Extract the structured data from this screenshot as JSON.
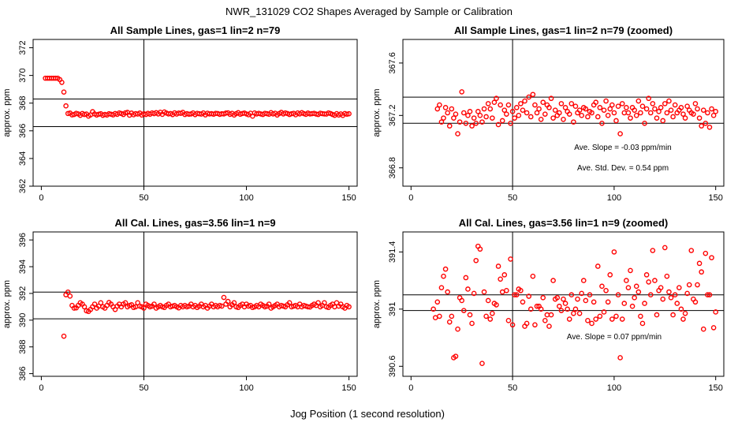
{
  "figure": {
    "title": "NWR_131029  CO2 Shapes Averaged by Sample or Calibration",
    "xlabel": "Jog Position (1 second resolution)"
  },
  "chart_data": [
    {
      "type": "scatter",
      "title": "All Sample Lines, gas=1 lin=2 n=79",
      "ylabel": "approx. ppm",
      "xlim": [
        -4,
        154
      ],
      "ylim": [
        362,
        372.6
      ],
      "xticks": [
        0,
        50,
        100,
        150
      ],
      "yticks": [
        362,
        364,
        366,
        368,
        370,
        372
      ],
      "hlines": [
        368.3,
        366.3
      ],
      "vline": 50,
      "series_ref": "sample",
      "annotations": []
    },
    {
      "type": "scatter",
      "title": "All Sample Lines, gas=1 lin=2 n=79 (zoomed)",
      "ylabel": "approx. ppm",
      "xlim": [
        -4,
        154
      ],
      "ylim": [
        366.66,
        367.78
      ],
      "xticks": [
        0,
        50,
        100,
        150
      ],
      "yticks": [
        366.8,
        367.2,
        367.6
      ],
      "hlines": [
        367.34,
        367.14
      ],
      "vline": 50,
      "series_ref": "sample",
      "annotations": [
        "Ave. Slope =  -0.03  ppm/min",
        "Ave. Std. Dev. =  0.54  ppm"
      ]
    },
    {
      "type": "scatter",
      "title": "All Cal. Lines, gas=3.56 lin=1 n=9",
      "ylabel": "approx. ppm",
      "xlim": [
        -4,
        154
      ],
      "ylim": [
        385.8,
        396.6
      ],
      "xticks": [
        0,
        50,
        100,
        150
      ],
      "yticks": [
        386,
        388,
        390,
        392,
        394,
        396
      ],
      "hlines": [
        392.1,
        390.1
      ],
      "vline": 50,
      "series_ref": "cal",
      "annotations": []
    },
    {
      "type": "scatter",
      "title": "All Cal. Lines, gas=3.56 lin=1 n=9 (zoomed)",
      "ylabel": "approx. ppm",
      "xlim": [
        -4,
        154
      ],
      "ylim": [
        390.53,
        391.54
      ],
      "xticks": [
        0,
        50,
        100,
        150
      ],
      "yticks": [
        390.6,
        391.0,
        391.4
      ],
      "hlines": [
        391.1,
        390.99
      ],
      "vline": 50,
      "series_ref": "cal",
      "annotations": [
        "Ave. Slope =  0.07  ppm/min"
      ]
    }
  ],
  "series": {
    "sample": {
      "x": [
        2,
        3,
        4,
        5,
        6,
        7,
        8,
        9,
        10,
        11,
        12,
        13,
        14,
        15,
        16,
        17,
        18,
        19,
        20,
        21,
        22,
        23,
        24,
        25,
        26,
        27,
        28,
        29,
        30,
        31,
        32,
        33,
        34,
        35,
        36,
        37,
        38,
        39,
        40,
        41,
        42,
        43,
        44,
        45,
        46,
        47,
        48,
        49,
        50,
        51,
        52,
        53,
        54,
        55,
        56,
        57,
        58,
        59,
        60,
        61,
        62,
        63,
        64,
        65,
        66,
        67,
        68,
        69,
        70,
        71,
        72,
        73,
        74,
        75,
        76,
        77,
        78,
        79,
        80,
        81,
        82,
        83,
        84,
        85,
        86,
        87,
        88,
        89,
        90,
        91,
        92,
        93,
        94,
        95,
        96,
        97,
        98,
        99,
        100,
        101,
        102,
        103,
        104,
        105,
        106,
        107,
        108,
        109,
        110,
        111,
        112,
        113,
        114,
        115,
        116,
        117,
        118,
        119,
        120,
        121,
        122,
        123,
        124,
        125,
        126,
        127,
        128,
        129,
        130,
        131,
        132,
        133,
        134,
        135,
        136,
        137,
        138,
        139,
        140,
        141,
        142,
        143,
        144,
        145,
        146,
        147,
        148,
        149,
        150
      ],
      "y": [
        369.8,
        369.8,
        369.8,
        369.8,
        369.8,
        369.8,
        369.8,
        369.7,
        369.5,
        368.8,
        367.8,
        367.25,
        367.28,
        367.15,
        367.18,
        367.26,
        367.22,
        367.12,
        367.25,
        367.18,
        367.21,
        367.06,
        367.15,
        367.38,
        367.22,
        367.14,
        367.2,
        367.23,
        367.12,
        367.18,
        367.14,
        367.23,
        367.2,
        367.15,
        367.25,
        367.19,
        367.29,
        367.25,
        367.18,
        367.3,
        367.33,
        367.13,
        367.28,
        367.16,
        367.24,
        367.21,
        367.28,
        367.14,
        367.23,
        367.18,
        367.26,
        367.2,
        367.29,
        367.24,
        367.31,
        367.22,
        367.34,
        367.19,
        367.36,
        367.28,
        367.22,
        367.25,
        367.17,
        367.3,
        367.21,
        367.28,
        367.26,
        367.33,
        367.18,
        367.24,
        367.2,
        367.22,
        367.29,
        367.17,
        367.26,
        367.23,
        367.21,
        367.29,
        367.15,
        367.27,
        367.22,
        367.24,
        367.2,
        367.26,
        367.25,
        367.19,
        367.23,
        367.22,
        367.28,
        367.3,
        367.19,
        367.26,
        367.14,
        367.24,
        367.31,
        367.2,
        367.25,
        367.28,
        367.22,
        367.16,
        367.27,
        367.06,
        367.29,
        367.22,
        367.26,
        367.22,
        367.18,
        367.26,
        367.24,
        367.2,
        367.31,
        367.22,
        367.27,
        367.14,
        367.25,
        367.33,
        367.22,
        367.29,
        367.25,
        367.18,
        367.23,
        367.26,
        367.16,
        367.29,
        367.22,
        367.31,
        367.24,
        367.19,
        367.28,
        367.22,
        367.24,
        367.26,
        367.21,
        367.18,
        367.27,
        367.24,
        367.22,
        367.21,
        367.29,
        367.25,
        367.18,
        367.12,
        367.24,
        367.14,
        367.22,
        367.11,
        367.25,
        367.2,
        367.23
      ]
    },
    "cal": {
      "x": [
        11,
        12,
        13,
        14,
        15,
        16,
        17,
        18,
        19,
        20,
        21,
        22,
        23,
        24,
        25,
        26,
        27,
        28,
        29,
        30,
        31,
        32,
        33,
        34,
        35,
        36,
        37,
        38,
        39,
        40,
        41,
        42,
        43,
        44,
        45,
        46,
        47,
        48,
        49,
        50,
        51,
        52,
        53,
        54,
        55,
        56,
        57,
        58,
        59,
        60,
        61,
        62,
        63,
        64,
        65,
        66,
        67,
        68,
        69,
        70,
        71,
        72,
        73,
        74,
        75,
        76,
        77,
        78,
        79,
        80,
        81,
        82,
        83,
        84,
        85,
        86,
        87,
        88,
        89,
        90,
        91,
        92,
        93,
        94,
        95,
        96,
        97,
        98,
        99,
        100,
        101,
        102,
        103,
        104,
        105,
        106,
        107,
        108,
        109,
        110,
        111,
        112,
        113,
        114,
        115,
        116,
        117,
        118,
        119,
        120,
        121,
        122,
        123,
        124,
        125,
        126,
        127,
        128,
        129,
        130,
        131,
        132,
        133,
        134,
        135,
        136,
        137,
        138,
        139,
        140,
        141,
        142,
        143,
        144,
        145,
        146,
        147,
        148,
        149,
        150
      ],
      "y": [
        388.8,
        391.9,
        392.1,
        391.8,
        391.1,
        390.9,
        390.92,
        391.1,
        391.3,
        391.2,
        391.0,
        390.7,
        390.65,
        390.8,
        391.0,
        391.2,
        390.9,
        391.05,
        391.3,
        391.0,
        390.9,
        391.1,
        391.32,
        391.2,
        391.0,
        390.8,
        391.05,
        391.2,
        391.0,
        391.2,
        391.3,
        391.0,
        391.1,
        391.15,
        390.95,
        391.0,
        391.3,
        391.05,
        391.0,
        390.9,
        391.2,
        391.1,
        391.0,
        391.05,
        391.2,
        390.9,
        391.0,
        391.1,
        391.0,
        390.95,
        391.1,
        391.2,
        391.0,
        391.05,
        391.1,
        391.0,
        390.92,
        391.1,
        391.0,
        391.1,
        391.0,
        391.05,
        391.2,
        391.0,
        391.1,
        390.95,
        391.05,
        391.2,
        391.0,
        391.1,
        390.9,
        391.05,
        391.2,
        391.0,
        391.1,
        391.0,
        391.1,
        391.05,
        391.7,
        391.2,
        391.4,
        391.0,
        391.15,
        391.3,
        391.0,
        390.95,
        391.1,
        391.2,
        391.0,
        391.2,
        391.05,
        391.1,
        390.95,
        391.0,
        391.1,
        391.0,
        391.2,
        391.1,
        391.0,
        391.05,
        391.2,
        390.9,
        391.0,
        391.1,
        391.2,
        391.0,
        391.1,
        391.05,
        391.0,
        391.15,
        391.3,
        391.0,
        391.05,
        391.1,
        391.0,
        391.2,
        391.0,
        391.1,
        391.05,
        391.0,
        390.98,
        391.1,
        391.2,
        391.1,
        391.3,
        391.0,
        391.1,
        391.3,
        391.0,
        390.95,
        391.1,
        391.2,
        391.0,
        391.3,
        391.05,
        391.2,
        391.0,
        390.9,
        391.1,
        391.0
      ]
    },
    "cal_zoom": {
      "x": [
        11,
        12,
        13,
        14,
        15,
        16,
        17,
        18,
        19,
        20,
        21,
        22,
        23,
        24,
        25,
        26,
        27,
        28,
        29,
        30,
        31,
        32,
        33,
        34,
        35,
        36,
        37,
        38,
        39,
        40,
        41,
        42,
        43,
        44,
        45,
        46,
        47,
        48,
        49,
        50,
        51,
        52,
        53,
        54,
        55,
        56,
        57,
        58,
        59,
        60,
        61,
        62,
        63,
        64,
        65,
        66,
        67,
        68,
        69,
        70,
        71,
        72,
        73,
        74,
        75,
        76,
        77,
        78,
        79,
        80,
        81,
        82,
        83,
        84,
        85,
        86,
        87,
        88,
        89,
        90,
        91,
        92,
        93,
        94,
        95,
        96,
        97,
        98,
        99,
        100,
        101,
        102,
        103,
        104,
        105,
        106,
        107,
        108,
        109,
        110,
        111,
        112,
        113,
        114,
        115,
        116,
        117,
        118,
        119,
        120,
        121,
        122,
        123,
        124,
        125,
        126,
        127,
        128,
        129,
        130,
        131,
        132,
        133,
        134,
        135,
        136,
        137,
        138,
        139,
        140,
        141,
        142,
        143,
        144,
        145,
        146,
        147,
        148,
        149,
        150
      ],
      "y": [
        391.0,
        390.94,
        391.05,
        390.95,
        391.15,
        391.23,
        391.28,
        391.12,
        390.91,
        390.95,
        390.66,
        390.67,
        390.86,
        391.08,
        391.06,
        390.99,
        391.22,
        391.14,
        390.96,
        390.9,
        391.11,
        391.34,
        391.44,
        391.42,
        390.62,
        391.12,
        390.95,
        391.06,
        390.93,
        390.97,
        391.04,
        391.03,
        391.3,
        391.21,
        391.12,
        391.24,
        391.13,
        390.92,
        391.35,
        390.89,
        391.1,
        391.1,
        391.14,
        391.13,
        391.05,
        390.88,
        390.9,
        391.09,
        391.0,
        391.23,
        390.89,
        391.02,
        391.02,
        391.0,
        391.08,
        390.92,
        390.96,
        390.88,
        390.96,
        391.2,
        391.07,
        391.08,
        391.02,
        390.99,
        391.07,
        391.04,
        391.0,
        390.93,
        391.1,
        390.97,
        391.0,
        391.07,
        390.97,
        391.11,
        391.2,
        391.06,
        390.92,
        391.1,
        390.9,
        391.05,
        390.93,
        391.3,
        390.95,
        391.16,
        390.98,
        391.13,
        391.05,
        391.24,
        390.93,
        391.4,
        390.95,
        391.1,
        390.66,
        390.93,
        391.04,
        391.2,
        391.15,
        391.27,
        391.02,
        391.08,
        391.16,
        391.12,
        390.95,
        390.9,
        391.04,
        391.24,
        391.19,
        391.1,
        391.41,
        391.2,
        390.96,
        391.13,
        391.15,
        391.07,
        391.43,
        391.23,
        391.12,
        391.08,
        390.96,
        391.1,
        391.04,
        391.15,
        391.0,
        390.93,
        390.97,
        391.11,
        391.17,
        391.41,
        391.07,
        391.05,
        391.17,
        391.32,
        391.26,
        390.86,
        391.39,
        391.1,
        391.1,
        391.36,
        390.87,
        390.98
      ]
    }
  },
  "colors": {
    "points": "#ff0000",
    "axes": "#000000"
  }
}
